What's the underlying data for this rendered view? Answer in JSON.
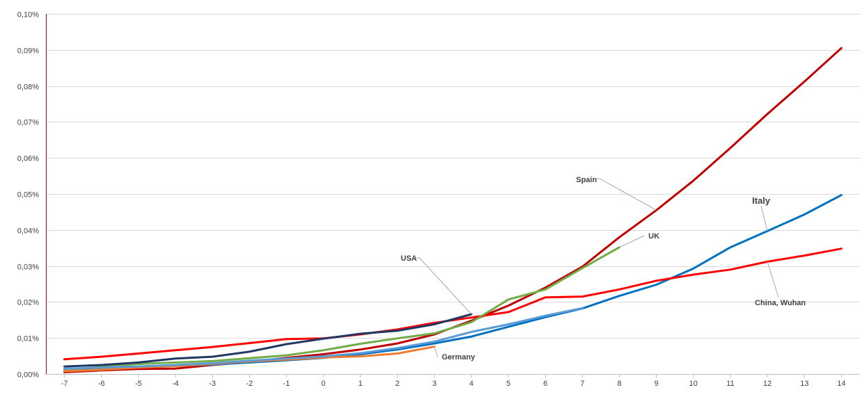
{
  "chart_data": {
    "type": "line",
    "title": "",
    "xlabel": "",
    "ylabel": "",
    "x": [
      -7,
      -6,
      -5,
      -4,
      -3,
      -2,
      -1,
      0,
      1,
      2,
      3,
      4,
      5,
      6,
      7,
      8,
      9,
      10,
      11,
      12,
      13,
      14
    ],
    "x_tick_labels": [
      "-7",
      "-6",
      "-5",
      "-4",
      "-3",
      "-2",
      "-1",
      "0",
      "1",
      "2",
      "3",
      "4",
      "5",
      "6",
      "7",
      "8",
      "9",
      "10",
      "11",
      "12",
      "13",
      "14"
    ],
    "xlim": [
      -7.5,
      14.5
    ],
    "ylim": [
      0,
      0.1
    ],
    "y_tick_values": [
      0,
      0.01,
      0.02,
      0.03,
      0.04,
      0.05,
      0.06,
      0.07,
      0.08,
      0.09,
      0.1
    ],
    "y_tick_labels": [
      "0,00%",
      "0,01%",
      "0,02%",
      "0,03%",
      "0,04%",
      "0,05%",
      "0,06%",
      "0,07%",
      "0,08%",
      "0,09%",
      "0,10%"
    ],
    "grid": true,
    "legend": "none",
    "series": [
      {
        "name": "Spain",
        "color": "#C00000",
        "x": [
          -7,
          -6,
          -5,
          -4,
          -3,
          -2,
          -1,
          0,
          1,
          2,
          3,
          4,
          5,
          6,
          7,
          8,
          9,
          10,
          11,
          12,
          13,
          14
        ],
        "values": [
          0.0005,
          0.001,
          0.0014,
          0.0015,
          0.0025,
          0.0034,
          0.0045,
          0.0055,
          0.0068,
          0.0085,
          0.011,
          0.0148,
          0.019,
          0.024,
          0.0298,
          0.038,
          0.0455,
          0.0537,
          0.0628,
          0.0722,
          0.0812,
          0.0905
        ],
        "callout": {
          "text": "Spain",
          "x": 9,
          "y": 0.0455,
          "size": "normal"
        }
      },
      {
        "name": "Italy",
        "color": "#0070C0",
        "x": [
          -7,
          -6,
          -5,
          -4,
          -3,
          -2,
          -1,
          0,
          1,
          2,
          3,
          4,
          5,
          6,
          7,
          8,
          9,
          10,
          11,
          12,
          13,
          14
        ],
        "values": [
          0.0013,
          0.0016,
          0.002,
          0.0023,
          0.0026,
          0.0032,
          0.0038,
          0.0045,
          0.0055,
          0.0068,
          0.0085,
          0.0104,
          0.0131,
          0.0158,
          0.0182,
          0.0217,
          0.0248,
          0.0293,
          0.0352,
          0.0397,
          0.0443,
          0.0497
        ],
        "callout": {
          "text": "Italy",
          "x": 12,
          "y": 0.0397,
          "size": "big"
        }
      },
      {
        "name": "China, Wuhan",
        "color": "#FF0000",
        "x": [
          -7,
          -6,
          -5,
          -4,
          -3,
          -2,
          -1,
          0,
          1,
          2,
          3,
          4,
          5,
          6,
          7,
          8,
          9,
          10,
          11,
          12,
          13,
          14
        ],
        "values": [
          0.0041,
          0.0048,
          0.0057,
          0.0066,
          0.0075,
          0.0086,
          0.0097,
          0.0099,
          0.011,
          0.0124,
          0.0142,
          0.0157,
          0.0172,
          0.0213,
          0.0215,
          0.0235,
          0.0259,
          0.0276,
          0.029,
          0.0312,
          0.0329,
          0.0348
        ],
        "callout": {
          "text": "China, Wuhan",
          "x": 12,
          "y": 0.0312,
          "size": "normal"
        }
      },
      {
        "name": "UK",
        "color": "#70AD47",
        "x": [
          -7,
          -6,
          -5,
          -4,
          -3,
          -2,
          -1,
          0,
          1,
          2,
          3,
          4,
          5,
          6,
          7,
          8
        ],
        "values": [
          0.0012,
          0.002,
          0.0028,
          0.0032,
          0.0036,
          0.0044,
          0.0052,
          0.0066,
          0.0084,
          0.0099,
          0.0113,
          0.0144,
          0.0207,
          0.0235,
          0.0294,
          0.0352
        ],
        "callout": {
          "text": "UK",
          "x": 8,
          "y": 0.0352,
          "size": "normal"
        }
      },
      {
        "name": "USA",
        "color": "#1F3864",
        "x": [
          -7,
          -6,
          -5,
          -4,
          -3,
          -2,
          -1,
          0,
          1,
          2,
          3,
          4
        ],
        "values": [
          0.0021,
          0.0025,
          0.0032,
          0.0043,
          0.0048,
          0.0062,
          0.0083,
          0.0098,
          0.0112,
          0.012,
          0.0138,
          0.0166
        ],
        "callout": {
          "text": "USA",
          "x": 4,
          "y": 0.0166,
          "size": "normal"
        }
      },
      {
        "name": "Germany",
        "color": "#ED7D31",
        "x": [
          -7,
          -6,
          -5,
          -4,
          -3,
          -2,
          -1,
          0,
          1,
          2,
          3
        ],
        "values": [
          0.0008,
          0.0012,
          0.0018,
          0.0022,
          0.0028,
          0.0035,
          0.004,
          0.0046,
          0.0049,
          0.0057,
          0.0076
        ],
        "callout": {
          "text": "Germany",
          "x": 3,
          "y": 0.0076,
          "size": "normal"
        }
      },
      {
        "name": "",
        "color": "#5B9BD5",
        "x": [
          -7,
          -6,
          -5,
          -4,
          -3,
          -2,
          -1,
          0,
          1,
          2,
          3,
          4,
          5,
          6,
          7
        ],
        "values": [
          0.0015,
          0.0018,
          0.0021,
          0.0025,
          0.003,
          0.0037,
          0.0043,
          0.0049,
          0.0058,
          0.0072,
          0.009,
          0.0117,
          0.0138,
          0.0162,
          0.0183
        ]
      }
    ]
  }
}
